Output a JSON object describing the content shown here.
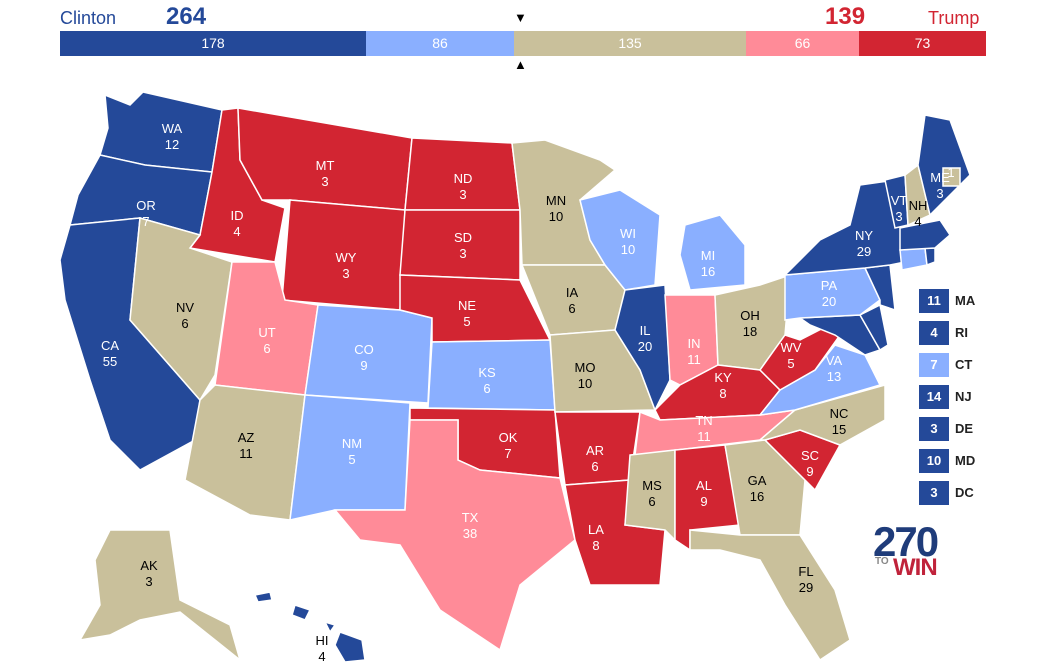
{
  "header": {
    "left_candidate": "Clinton",
    "left_total": "264",
    "right_candidate": "Trump",
    "right_total": "139",
    "segments": [
      {
        "value": "178",
        "color": "#244999"
      },
      {
        "value": "86",
        "color": "#8aafff"
      },
      {
        "value": "135",
        "color": "#c9c09b"
      },
      {
        "value": "66",
        "color": "#ff8b98"
      },
      {
        "value": "73",
        "color": "#d22532"
      }
    ],
    "arrow_down": "▼",
    "arrow_up": "▲"
  },
  "map_colors": {
    "safe_dem": "#244999",
    "lean_dem": "#8aafff",
    "tossup": "#c9c09b",
    "lean_rep": "#ff8b98",
    "safe_rep": "#d22532"
  },
  "states": [
    {
      "abbr": "WA",
      "votes": "12"
    },
    {
      "abbr": "OR",
      "votes": "7"
    },
    {
      "abbr": "CA",
      "votes": "55"
    },
    {
      "abbr": "ID",
      "votes": "4"
    },
    {
      "abbr": "NV",
      "votes": "6"
    },
    {
      "abbr": "MT",
      "votes": "3"
    },
    {
      "abbr": "WY",
      "votes": "3"
    },
    {
      "abbr": "UT",
      "votes": "6"
    },
    {
      "abbr": "AZ",
      "votes": "11"
    },
    {
      "abbr": "CO",
      "votes": "9"
    },
    {
      "abbr": "NM",
      "votes": "5"
    },
    {
      "abbr": "ND",
      "votes": "3"
    },
    {
      "abbr": "SD",
      "votes": "3"
    },
    {
      "abbr": "NE",
      "votes": "5"
    },
    {
      "abbr": "KS",
      "votes": "6"
    },
    {
      "abbr": "OK",
      "votes": "7"
    },
    {
      "abbr": "TX",
      "votes": "38"
    },
    {
      "abbr": "MN",
      "votes": "10"
    },
    {
      "abbr": "IA",
      "votes": "6"
    },
    {
      "abbr": "MO",
      "votes": "10"
    },
    {
      "abbr": "AR",
      "votes": "6"
    },
    {
      "abbr": "LA",
      "votes": "8"
    },
    {
      "abbr": "WI",
      "votes": "10"
    },
    {
      "abbr": "IL",
      "votes": "20"
    },
    {
      "abbr": "MI",
      "votes": "16"
    },
    {
      "abbr": "IN",
      "votes": "11"
    },
    {
      "abbr": "OH",
      "votes": "18"
    },
    {
      "abbr": "KY",
      "votes": "8"
    },
    {
      "abbr": "TN",
      "votes": "11"
    },
    {
      "abbr": "MS",
      "votes": "6"
    },
    {
      "abbr": "AL",
      "votes": "9"
    },
    {
      "abbr": "GA",
      "votes": "16"
    },
    {
      "abbr": "FL",
      "votes": "29"
    },
    {
      "abbr": "SC",
      "votes": "9"
    },
    {
      "abbr": "NC",
      "votes": "15"
    },
    {
      "abbr": "VA",
      "votes": "13"
    },
    {
      "abbr": "WV",
      "votes": "5"
    },
    {
      "abbr": "PA",
      "votes": "20"
    },
    {
      "abbr": "NY",
      "votes": "29"
    },
    {
      "abbr": "VT",
      "votes": "3"
    },
    {
      "abbr": "NH",
      "votes": "4"
    },
    {
      "abbr": "ME",
      "votes": "3"
    },
    {
      "abbr": "ME-2",
      "votes": "1"
    },
    {
      "abbr": "AK",
      "votes": "3"
    },
    {
      "abbr": "HI",
      "votes": "4"
    }
  ],
  "small_states": [
    {
      "abbr": "MA",
      "votes": "11",
      "color": "#244999"
    },
    {
      "abbr": "RI",
      "votes": "4",
      "color": "#244999"
    },
    {
      "abbr": "CT",
      "votes": "7",
      "color": "#8aafff"
    },
    {
      "abbr": "NJ",
      "votes": "14",
      "color": "#244999"
    },
    {
      "abbr": "DE",
      "votes": "3",
      "color": "#244999"
    },
    {
      "abbr": "MD",
      "votes": "10",
      "color": "#244999"
    },
    {
      "abbr": "DC",
      "votes": "3",
      "color": "#244999"
    }
  ],
  "logo": {
    "number": "270",
    "to": "TO",
    "win": "WIN"
  }
}
